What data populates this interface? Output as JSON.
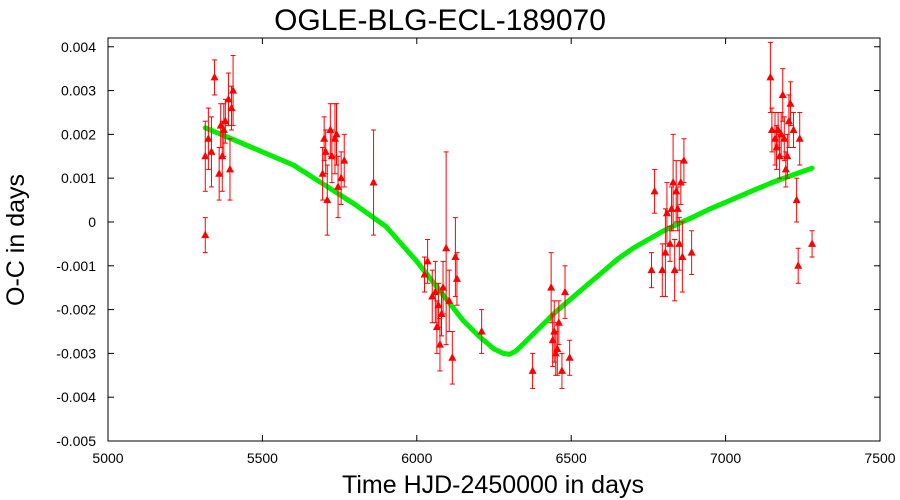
{
  "chart_data": {
    "type": "scatter",
    "title": "OGLE-BLG-ECL-189070",
    "xlabel": "Time HJD-2450000 in days",
    "ylabel": "O-C in days",
    "xlim": [
      5000,
      7500
    ],
    "ylim": [
      -0.005,
      0.0042
    ],
    "x_ticks": [
      5000,
      5500,
      6000,
      6500,
      7000,
      7500
    ],
    "y_ticks": [
      -0.005,
      -0.004,
      -0.003,
      -0.002,
      -0.001,
      0,
      0.001,
      0.002,
      0.003,
      0.004
    ],
    "x_tick_labels": [
      "5000",
      "5500",
      "6000",
      "6500",
      "7000",
      "7500"
    ],
    "y_tick_labels": [
      "-0.005",
      "-0.004",
      "-0.003",
      "-0.002",
      "-0.001",
      "0",
      "0.001",
      "0.002",
      "0.003",
      "0.004"
    ],
    "grid": false,
    "legend": "none",
    "colors": {
      "points": "#ff0000",
      "fit": "#00ee00",
      "axes": "#000000"
    },
    "series": [
      {
        "type": "scatter_with_errorbars",
        "points": [
          {
            "x": 5315,
            "y": -0.0003,
            "err": 0.0004
          },
          {
            "x": 5315,
            "y": 0.0015,
            "err": 0.0008
          },
          {
            "x": 5325,
            "y": 0.0019,
            "err": 0.0007
          },
          {
            "x": 5335,
            "y": 0.0016,
            "err": 0.0008
          },
          {
            "x": 5345,
            "y": 0.0033,
            "err": 0.0004
          },
          {
            "x": 5360,
            "y": 0.0011,
            "err": 0.0006
          },
          {
            "x": 5365,
            "y": 0.0022,
            "err": 0.0005
          },
          {
            "x": 5370,
            "y": 0.0015,
            "err": 0.0008
          },
          {
            "x": 5375,
            "y": 0.0021,
            "err": 0.0006
          },
          {
            "x": 5380,
            "y": 0.0023,
            "err": 0.0005
          },
          {
            "x": 5390,
            "y": 0.0028,
            "err": 0.0006
          },
          {
            "x": 5395,
            "y": 0.0012,
            "err": 0.0007
          },
          {
            "x": 5400,
            "y": 0.0026,
            "err": 0.0005
          },
          {
            "x": 5405,
            "y": 0.003,
            "err": 0.0008
          },
          {
            "x": 5695,
            "y": 0.0011,
            "err": 0.0006
          },
          {
            "x": 5700,
            "y": 0.0019,
            "err": 0.0005
          },
          {
            "x": 5705,
            "y": 0.0016,
            "err": 0.0005
          },
          {
            "x": 5710,
            "y": 0.0005,
            "err": 0.0008
          },
          {
            "x": 5720,
            "y": 0.0021,
            "err": 0.0006
          },
          {
            "x": 5725,
            "y": 0.0015,
            "err": 0.0006
          },
          {
            "x": 5735,
            "y": 0.0019,
            "err": 0.0008
          },
          {
            "x": 5740,
            "y": 0.002,
            "err": 0.0007
          },
          {
            "x": 5745,
            "y": 0.0008,
            "err": 0.0007
          },
          {
            "x": 5755,
            "y": 0.001,
            "err": 0.0006
          },
          {
            "x": 5765,
            "y": 0.0014,
            "err": 0.0006
          },
          {
            "x": 5860,
            "y": 0.0009,
            "err": 0.0012
          },
          {
            "x": 6025,
            "y": -0.0012,
            "err": 0.0004
          },
          {
            "x": 6035,
            "y": -0.0009,
            "err": 0.0005
          },
          {
            "x": 6050,
            "y": -0.0017,
            "err": 0.0006
          },
          {
            "x": 6060,
            "y": -0.0016,
            "err": 0.0007
          },
          {
            "x": 6065,
            "y": -0.0024,
            "err": 0.0006
          },
          {
            "x": 6070,
            "y": -0.0019,
            "err": 0.0005
          },
          {
            "x": 6075,
            "y": -0.0028,
            "err": 0.0006
          },
          {
            "x": 6080,
            "y": -0.0021,
            "err": 0.0005
          },
          {
            "x": 6085,
            "y": -0.0015,
            "err": 0.0006
          },
          {
            "x": 6095,
            "y": -0.0006,
            "err": 0.0022
          },
          {
            "x": 6105,
            "y": -0.0018,
            "err": 0.0007
          },
          {
            "x": 6115,
            "y": -0.0031,
            "err": 0.0006
          },
          {
            "x": 6125,
            "y": -0.0008,
            "err": 0.0009
          },
          {
            "x": 6130,
            "y": -0.0013,
            "err": 0.0006
          },
          {
            "x": 6210,
            "y": -0.0025,
            "err": 0.0005
          },
          {
            "x": 6375,
            "y": -0.0034,
            "err": 0.0004
          },
          {
            "x": 6435,
            "y": -0.0015,
            "err": 0.0008
          },
          {
            "x": 6440,
            "y": -0.0027,
            "err": 0.0006
          },
          {
            "x": 6445,
            "y": -0.0025,
            "err": 0.0007
          },
          {
            "x": 6450,
            "y": -0.003,
            "err": 0.0005
          },
          {
            "x": 6455,
            "y": -0.0029,
            "err": 0.0006
          },
          {
            "x": 6460,
            "y": -0.0023,
            "err": 0.0005
          },
          {
            "x": 6470,
            "y": -0.0034,
            "err": 0.0004
          },
          {
            "x": 6480,
            "y": -0.0016,
            "err": 0.0006
          },
          {
            "x": 6495,
            "y": -0.0031,
            "err": 0.0004
          },
          {
            "x": 6760,
            "y": -0.0011,
            "err": 0.0004
          },
          {
            "x": 6770,
            "y": 0.0007,
            "err": 0.0005
          },
          {
            "x": 6795,
            "y": -0.0011,
            "err": 0.0006
          },
          {
            "x": 6805,
            "y": -0.0007,
            "err": 0.001
          },
          {
            "x": 6810,
            "y": 0.0002,
            "err": 0.0007
          },
          {
            "x": 6820,
            "y": -0.0005,
            "err": 0.0004
          },
          {
            "x": 6825,
            "y": 0.0003,
            "err": 0.0005
          },
          {
            "x": 6830,
            "y": 0.0009,
            "err": 0.0011
          },
          {
            "x": 6835,
            "y": -0.0011,
            "err": 0.0007
          },
          {
            "x": 6840,
            "y": 0.0007,
            "err": 0.0007
          },
          {
            "x": 6845,
            "y": 0.0003,
            "err": 0.0005
          },
          {
            "x": 6850,
            "y": -0.0005,
            "err": 0.0006
          },
          {
            "x": 6855,
            "y": 0.0009,
            "err": 0.0005
          },
          {
            "x": 6860,
            "y": -0.0008,
            "err": 0.0008
          },
          {
            "x": 6865,
            "y": 0.0014,
            "err": 0.0005
          },
          {
            "x": 6890,
            "y": -0.0007,
            "err": 0.0005
          },
          {
            "x": 7145,
            "y": 0.0033,
            "err": 0.0008
          },
          {
            "x": 7150,
            "y": 0.0021,
            "err": 0.0005
          },
          {
            "x": 7160,
            "y": 0.0019,
            "err": 0.0006
          },
          {
            "x": 7165,
            "y": 0.0017,
            "err": 0.0005
          },
          {
            "x": 7170,
            "y": 0.0021,
            "err": 0.0004
          },
          {
            "x": 7175,
            "y": 0.0015,
            "err": 0.0005
          },
          {
            "x": 7180,
            "y": 0.002,
            "err": 0.0005
          },
          {
            "x": 7185,
            "y": 0.0029,
            "err": 0.0006
          },
          {
            "x": 7190,
            "y": 0.0019,
            "err": 0.0005
          },
          {
            "x": 7195,
            "y": 0.0012,
            "err": 0.0004
          },
          {
            "x": 7200,
            "y": 0.0015,
            "err": 0.0005
          },
          {
            "x": 7205,
            "y": 0.0023,
            "err": 0.0006
          },
          {
            "x": 7210,
            "y": 0.0027,
            "err": 0.0005
          },
          {
            "x": 7220,
            "y": 0.0021,
            "err": 0.0004
          },
          {
            "x": 7230,
            "y": 0.0005,
            "err": 0.0005
          },
          {
            "x": 7235,
            "y": -0.001,
            "err": 0.0004
          },
          {
            "x": 7240,
            "y": 0.0019,
            "err": 0.0006
          },
          {
            "x": 7280,
            "y": -0.0005,
            "err": 0.0003
          }
        ]
      },
      {
        "type": "fit_line",
        "x": [
          5315,
          5400,
          5500,
          5600,
          5700,
          5800,
          5900,
          6000,
          6050,
          6100,
          6150,
          6200,
          6250,
          6280,
          6300,
          6320,
          6350,
          6400,
          6450,
          6500,
          6550,
          6600,
          6650,
          6700,
          6750,
          6800,
          6850,
          6900,
          6950,
          7000,
          7050,
          7100,
          7150,
          7200,
          7280
        ],
        "y": [
          0.00215,
          0.0019,
          0.0016,
          0.0013,
          0.00085,
          0.0004,
          -0.0001,
          -0.0009,
          -0.00135,
          -0.0018,
          -0.00225,
          -0.0026,
          -0.0029,
          -0.003,
          -0.00302,
          -0.00295,
          -0.00275,
          -0.0024,
          -0.00205,
          -0.00175,
          -0.00145,
          -0.00115,
          -0.00085,
          -0.0006,
          -0.0004,
          -0.0002,
          -3e-05,
          0.00013,
          0.0003,
          0.00045,
          0.0006,
          0.00075,
          0.0009,
          0.00103,
          0.00123
        ]
      }
    ]
  }
}
